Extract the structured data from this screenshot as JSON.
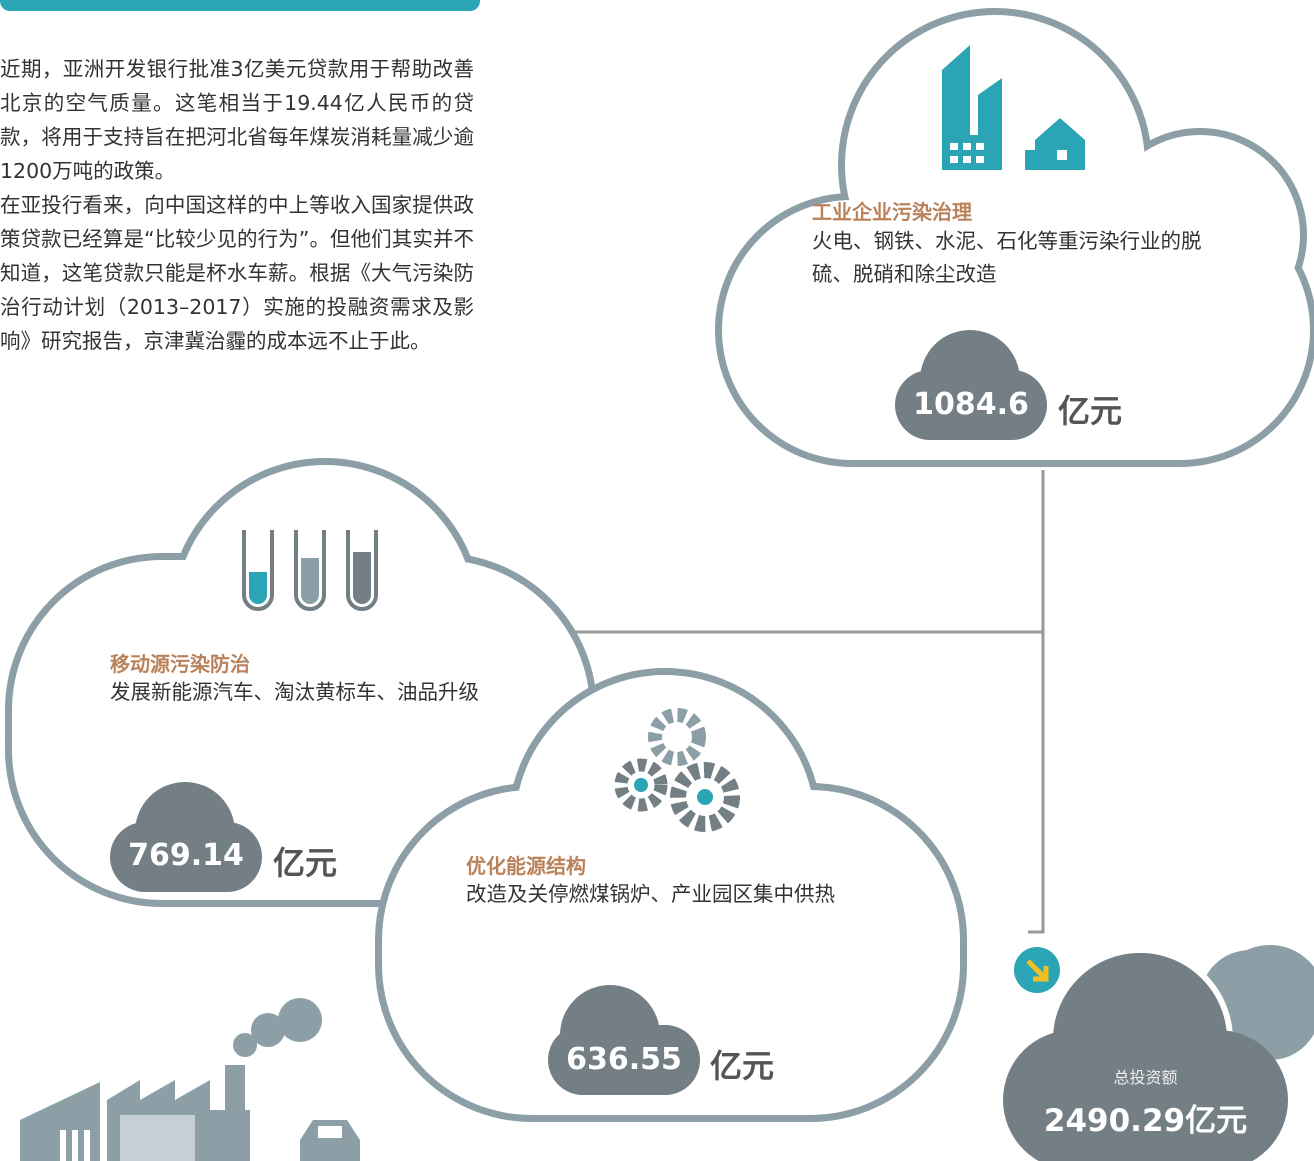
{
  "intro": {
    "paragraphs": [
      "近期，亚洲开发银行批准3亿美元贷款用于帮助改善北京的空气质量。这笔相当于19.44亿人民币的贷款，将用于支持旨在把河北省每年煤炭消耗量减少逾1200万吨的政策。",
      "在亚投行看来，向中国这样的中上等收入国家提供政策贷款已经算是“比较少见的行为”。但他们其实并不知道，这笔贷款只能是杯水车薪。根据《大气污染防治行动计划（2013–2017）实施的投融资需求及影响》研究报告，京津冀治霾的成本远不止于此。"
    ]
  },
  "items": [
    {
      "title": "工业企业污染治理",
      "description": "火电、钢铁、水泥、石化等重污染行业的脱硫、脱硝和除尘改造",
      "amount": "1084.6",
      "unit": "亿元"
    },
    {
      "title": "移动源污染防治",
      "description": "发展新能源汽车、淘汰黄标车、油品升级",
      "amount": "769.14",
      "unit": "亿元"
    },
    {
      "title": "优化能源结构",
      "description": "改造及关停燃煤锅炉、产业园区集中供热",
      "amount": "636.55",
      "unit": "亿元"
    }
  ],
  "total": {
    "label": "总投资额",
    "amount": "2490.29亿元"
  }
}
